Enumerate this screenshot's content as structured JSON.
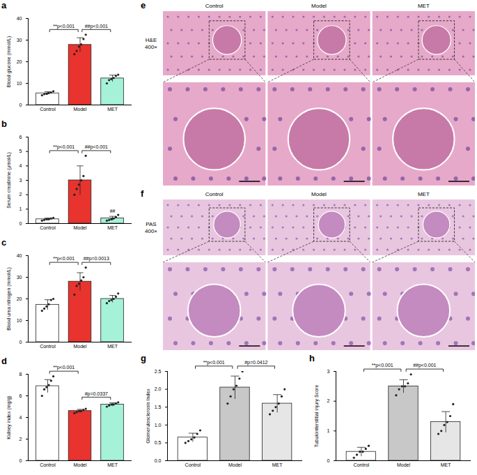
{
  "chart_data": [
    {
      "panel": "a",
      "type": "bar",
      "y_label": "Blood glucose (mmol/L)",
      "categories": [
        "Control",
        "Model",
        "MET"
      ],
      "values": [
        5.4,
        27.8,
        12.3
      ],
      "errors": [
        0.7,
        3.3,
        1.5
      ],
      "points": [
        [
          4.5,
          5.0,
          5.2,
          5.5,
          5.8,
          6.3
        ],
        [
          23.5,
          25.0,
          27.0,
          28.0,
          30.5,
          32.5
        ],
        [
          10.0,
          11.5,
          12.0,
          12.5,
          13.5,
          14.0
        ]
      ],
      "colors": [
        "#ffffff",
        "#e8332e",
        "#a6f2d8"
      ],
      "ylim": [
        0,
        40
      ],
      "yticks": [
        0,
        10,
        20,
        30,
        40
      ],
      "comparisons": [
        {
          "groups": [
            "Control",
            "Model"
          ],
          "label": "**p<0.001"
        },
        {
          "groups": [
            "Model",
            "MET"
          ],
          "label": "##p<0.001"
        }
      ]
    },
    {
      "panel": "b",
      "type": "bar",
      "y_label": "Serum creatinine (μmol/L)",
      "categories": [
        "Control",
        "Model",
        "MET"
      ],
      "values": [
        0.3,
        3.0,
        0.36
      ],
      "errors": [
        0.08,
        1.0,
        0.14
      ],
      "points": [
        [
          0.2,
          0.25,
          0.3,
          0.3,
          0.35,
          0.4
        ],
        [
          2.0,
          2.4,
          2.7,
          3.0,
          3.3,
          4.7
        ],
        [
          0.2,
          0.25,
          0.3,
          0.35,
          0.45,
          0.6
        ]
      ],
      "colors": [
        "#ffffff",
        "#e8332e",
        "#a6f2d8"
      ],
      "ylim": [
        0,
        6
      ],
      "yticks": [
        0,
        1,
        2,
        3,
        4,
        5,
        6
      ],
      "comparisons": [
        {
          "groups": [
            "Control",
            "Model"
          ],
          "label": "**p<0.001"
        },
        {
          "groups": [
            "Model",
            "MET"
          ],
          "label": "##p<0.001"
        }
      ],
      "annotations": [
        {
          "category": "MET",
          "label": "##"
        }
      ]
    },
    {
      "panel": "c",
      "type": "bar",
      "y_label": "Blood urea nitrogen (mmol/L)",
      "categories": [
        "Control",
        "Model",
        "MET"
      ],
      "values": [
        17.3,
        28.0,
        20.0
      ],
      "errors": [
        2.3,
        4.1,
        1.6
      ],
      "points": [
        [
          14.5,
          15.5,
          16.5,
          17.5,
          19.5,
          20.0
        ],
        [
          22.0,
          26.0,
          27.0,
          28.5,
          30.0,
          34.5
        ],
        [
          18.0,
          19.0,
          19.5,
          20.0,
          21.0,
          22.5
        ]
      ],
      "colors": [
        "#ffffff",
        "#e8332e",
        "#a6f2d8"
      ],
      "ylim": [
        0,
        40
      ],
      "yticks": [
        0,
        10,
        20,
        30,
        40
      ],
      "comparisons": [
        {
          "groups": [
            "Control",
            "Model"
          ],
          "label": "**p<0.001"
        },
        {
          "groups": [
            "Model",
            "MET"
          ],
          "label": "##p=0.0013"
        }
      ]
    },
    {
      "panel": "d",
      "type": "bar",
      "y_label": "Kidney index (mg/g)",
      "categories": [
        "Control",
        "Model",
        "MET"
      ],
      "values": [
        6.9,
        4.6,
        5.2
      ],
      "errors": [
        0.6,
        0.15,
        0.15
      ],
      "points": [
        [
          6.0,
          6.6,
          6.8,
          7.0,
          7.4,
          7.8
        ],
        [
          4.4,
          4.5,
          4.6,
          4.6,
          4.7,
          4.8
        ],
        [
          5.0,
          5.1,
          5.2,
          5.2,
          5.3,
          5.4
        ]
      ],
      "colors": [
        "#ffffff",
        "#e8332e",
        "#a6f2d8"
      ],
      "ylim": [
        0,
        8
      ],
      "yticks": [
        0,
        2,
        4,
        6,
        8
      ],
      "comparisons": [
        {
          "groups": [
            "Control",
            "Model"
          ],
          "label": "**p<0.001"
        },
        {
          "groups": [
            "Model",
            "MET"
          ],
          "label": "#p=0.0337"
        }
      ]
    },
    {
      "panel": "g",
      "type": "bar",
      "y_label": "Glomerulosclerosis Index",
      "categories": [
        "Control",
        "Model",
        "MET"
      ],
      "values": [
        0.65,
        2.05,
        1.6
      ],
      "errors": [
        0.12,
        0.32,
        0.25
      ],
      "points": [
        [
          0.5,
          0.55,
          0.6,
          0.65,
          0.75,
          0.85
        ],
        [
          1.6,
          1.8,
          2.0,
          2.1,
          2.3,
          2.5
        ],
        [
          1.3,
          1.4,
          1.5,
          1.6,
          1.8,
          2.0
        ]
      ],
      "colors": [
        "#ffffff",
        "#c8c8c8",
        "#e6e6e6"
      ],
      "ylim": [
        0,
        2.5
      ],
      "yticks": [
        {
          "value": 0,
          "label": "0.0"
        },
        0.5,
        {
          "value": 1,
          "label": "1.0"
        },
        1.5,
        {
          "value": 2,
          "label": "2.0"
        },
        2.5
      ],
      "comparisons": [
        {
          "groups": [
            "Control",
            "Model"
          ],
          "label": "**p<0.001"
        },
        {
          "groups": [
            "Model",
            "MET"
          ],
          "label": "#p=0.0412"
        }
      ]
    },
    {
      "panel": "h",
      "type": "bar",
      "y_label": "Tubulointerstitial injury Score",
      "categories": [
        "Control",
        "Model",
        "MET"
      ],
      "values": [
        0.3,
        2.5,
        1.3
      ],
      "errors": [
        0.15,
        0.22,
        0.35
      ],
      "points": [
        [
          0.1,
          0.2,
          0.3,
          0.3,
          0.4,
          0.5
        ],
        [
          2.2,
          2.4,
          2.5,
          2.5,
          2.6,
          2.9
        ],
        [
          0.9,
          1.0,
          1.2,
          1.3,
          1.5,
          1.9
        ]
      ],
      "colors": [
        "#ffffff",
        "#c8c8c8",
        "#e6e6e6"
      ],
      "ylim": [
        0,
        3
      ],
      "yticks": [
        0,
        1,
        2,
        3
      ],
      "comparisons": [
        {
          "groups": [
            "Control",
            "Model"
          ],
          "label": "**p<0.001"
        },
        {
          "groups": [
            "Model",
            "MET"
          ],
          "label": "##p<0.001"
        }
      ]
    }
  ],
  "images": [
    {
      "panel": "e",
      "stain": "H&E",
      "magnification": "400×",
      "columns": [
        "Control",
        "Model",
        "MET"
      ]
    },
    {
      "panel": "f",
      "stain": "PAS",
      "magnification": "400×",
      "columns": [
        "Control",
        "Model",
        "MET"
      ]
    }
  ]
}
